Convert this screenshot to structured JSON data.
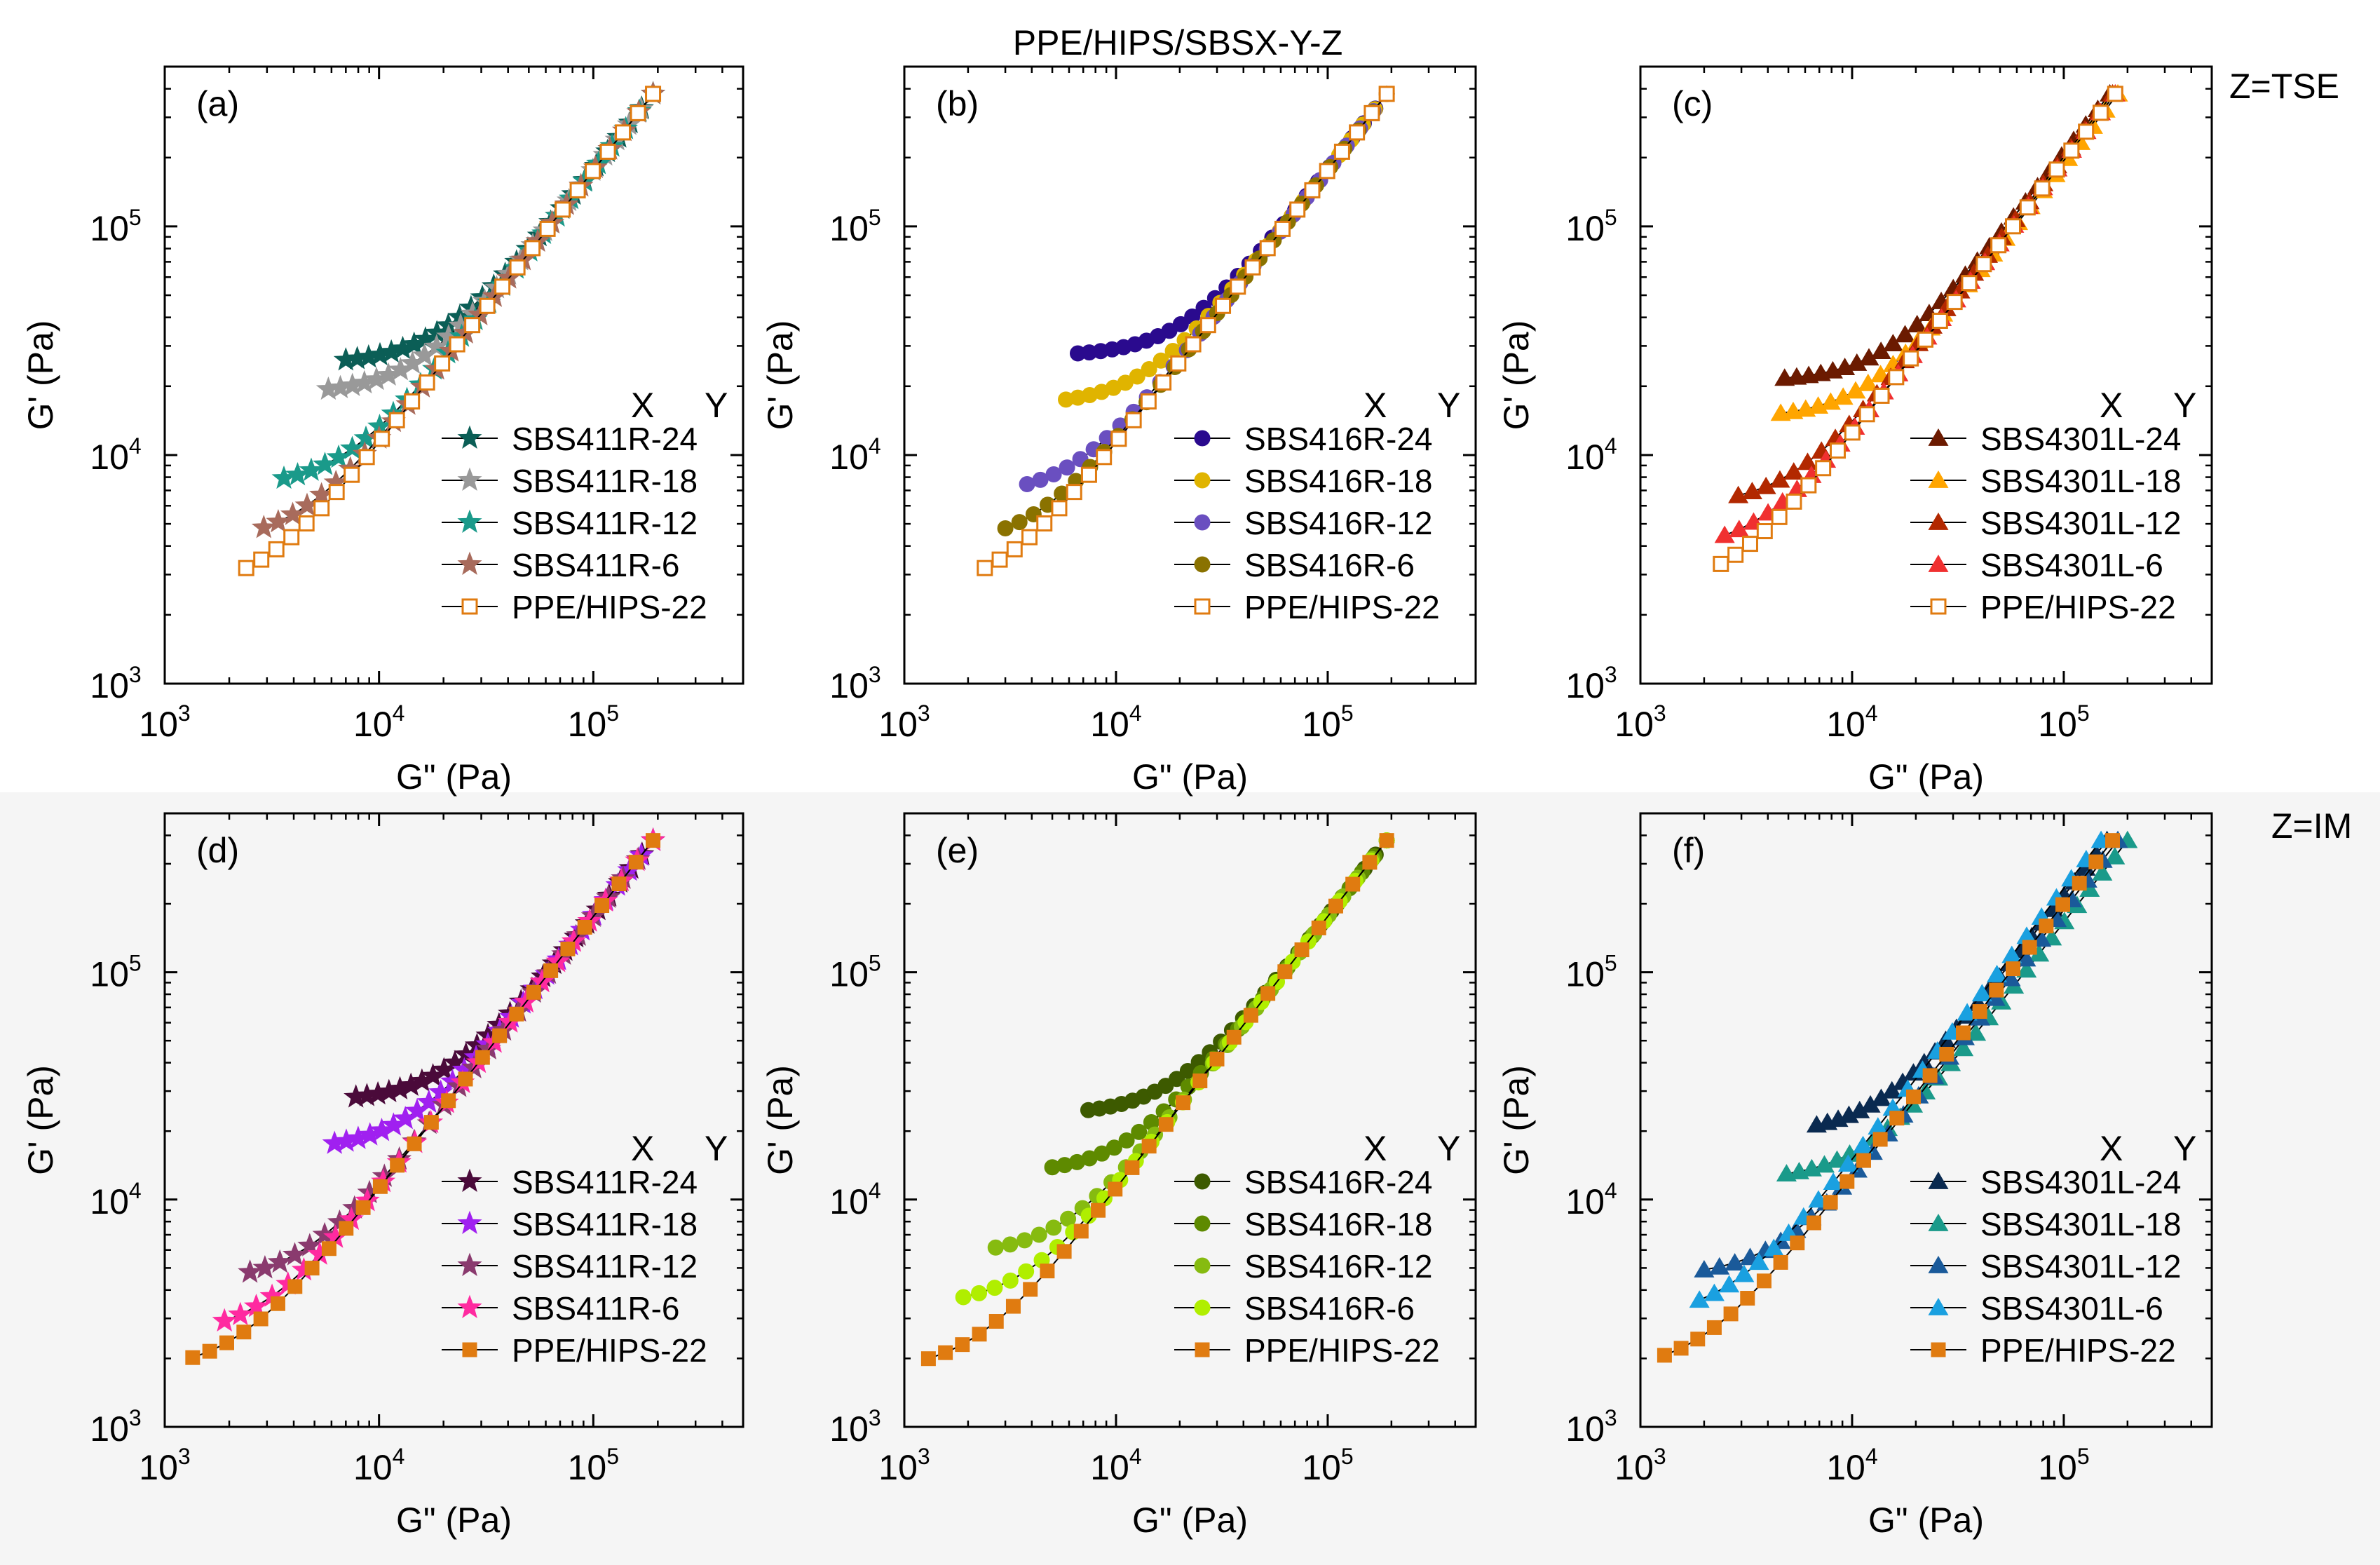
{
  "figure": {
    "title": "PPE/HIPS/SBSX-Y-Z",
    "row_labels": [
      "Z=TSE",
      "Z=IM"
    ],
    "legend_header_x": "X",
    "legend_header_y": "Y",
    "bottom_row_background": "#f5f5f5"
  },
  "chart_data": [
    {
      "type": "scatter",
      "panel": "(a)",
      "xlabel": "G\" (Pa)",
      "ylabel": "G' (Pa)",
      "xscale": "log",
      "yscale": "log",
      "xlim": [
        1000,
        500000
      ],
      "ylim": [
        1000,
        500000
      ],
      "x_ticks": [
        1000,
        10000,
        100000
      ],
      "y_ticks": [
        1000,
        10000,
        100000
      ],
      "legend_position": "bottom-right",
      "series": [
        {
          "name": "SBS411R-24",
          "color": "#0b5e56",
          "marker": "star",
          "x_start": 7000,
          "x_end": 190000,
          "plateau": 25000
        },
        {
          "name": "SBS411R-18",
          "color": "#999999",
          "marker": "star",
          "x_start": 5800,
          "x_end": 190000,
          "plateau": 18500
        },
        {
          "name": "SBS411R-12",
          "color": "#1a9a8a",
          "marker": "star",
          "x_start": 3600,
          "x_end": 190000,
          "plateau": 7200
        },
        {
          "name": "SBS411R-6",
          "color": "#a86b5c",
          "marker": "star",
          "x_start": 2900,
          "x_end": 190000,
          "plateau": 4100
        },
        {
          "name": "PPE/HIPS-22",
          "color": "#e07b10",
          "marker": "open-square",
          "x_start": 2400,
          "x_end": 190000,
          "plateau": 2500
        }
      ]
    },
    {
      "type": "scatter",
      "panel": "(b)",
      "xlabel": "G\" (Pa)",
      "ylabel": "G' (Pa)",
      "xscale": "log",
      "yscale": "log",
      "xlim": [
        1000,
        500000
      ],
      "ylim": [
        1000,
        500000
      ],
      "x_ticks": [
        1000,
        10000,
        100000
      ],
      "y_ticks": [
        1000,
        10000,
        100000
      ],
      "legend_position": "bottom-right",
      "series": [
        {
          "name": "SBS416R-24",
          "color": "#2a0a8e",
          "marker": "circle",
          "x_start": 6600,
          "x_end": 190000,
          "plateau": 27000
        },
        {
          "name": "SBS416R-18",
          "color": "#e0b400",
          "marker": "circle",
          "x_start": 5800,
          "x_end": 190000,
          "plateau": 16500
        },
        {
          "name": "SBS416R-12",
          "color": "#6a4fc0",
          "marker": "circle",
          "x_start": 3800,
          "x_end": 190000,
          "plateau": 6600
        },
        {
          "name": "SBS416R-6",
          "color": "#8a7200",
          "marker": "circle",
          "x_start": 3000,
          "x_end": 190000,
          "plateau": 4000
        },
        {
          "name": "PPE/HIPS-22",
          "color": "#e07b10",
          "marker": "open-square",
          "x_start": 2400,
          "x_end": 190000,
          "plateau": 2500
        }
      ]
    },
    {
      "type": "scatter",
      "panel": "(c)",
      "xlabel": "G\" (Pa)",
      "ylabel": "G' (Pa)",
      "xscale": "log",
      "yscale": "log",
      "xlim": [
        1000,
        500000
      ],
      "ylim": [
        1000,
        500000
      ],
      "x_ticks": [
        1000,
        10000,
        100000
      ],
      "y_ticks": [
        1000,
        10000,
        100000
      ],
      "legend_position": "bottom-right",
      "series": [
        {
          "name": "SBS4301L-24",
          "color": "#6b1a00",
          "marker": "triangle",
          "x_start": 4800,
          "x_end": 165000,
          "plateau": 21000
        },
        {
          "name": "SBS4301L-18",
          "color": "#ffa500",
          "marker": "triangle",
          "x_start": 4600,
          "x_end": 180000,
          "plateau": 14500
        },
        {
          "name": "SBS4301L-12",
          "color": "#b22800",
          "marker": "triangle",
          "x_start": 2900,
          "x_end": 170000,
          "plateau": 6000
        },
        {
          "name": "SBS4301L-6",
          "color": "#f03030",
          "marker": "triangle",
          "x_start": 2500,
          "x_end": 175000,
          "plateau": 3800
        },
        {
          "name": "PPE/HIPS-22",
          "color": "#e07b10",
          "marker": "open-square",
          "x_start": 2400,
          "x_end": 175000,
          "plateau": 2500
        }
      ]
    },
    {
      "type": "scatter",
      "panel": "(d)",
      "xlabel": "G\" (Pa)",
      "ylabel": "G' (Pa)",
      "xscale": "log",
      "yscale": "log",
      "xlim": [
        1000,
        500000
      ],
      "ylim": [
        1000,
        500000
      ],
      "x_ticks": [
        1000,
        10000,
        100000
      ],
      "y_ticks": [
        1000,
        10000,
        100000
      ],
      "legend_position": "bottom-right",
      "series": [
        {
          "name": "SBS411R-24",
          "color": "#4a0a3a",
          "marker": "star",
          "x_start": 7800,
          "x_end": 190000,
          "plateau": 27000
        },
        {
          "name": "SBS411R-18",
          "color": "#a020f0",
          "marker": "star",
          "x_start": 6200,
          "x_end": 190000,
          "plateau": 16500
        },
        {
          "name": "SBS411R-12",
          "color": "#8a3a6e",
          "marker": "star",
          "x_start": 2500,
          "x_end": 190000,
          "plateau": 4300
        },
        {
          "name": "SBS411R-6",
          "color": "#ff2aa0",
          "marker": "star",
          "x_start": 1900,
          "x_end": 190000,
          "plateau": 2500
        },
        {
          "name": "PPE/HIPS-22",
          "color": "#e07b10",
          "marker": "filled-square",
          "x_start": 1350,
          "x_end": 190000,
          "plateau": 1750
        }
      ]
    },
    {
      "type": "scatter",
      "panel": "(e)",
      "xlabel": "G\" (Pa)",
      "ylabel": "G' (Pa)",
      "xscale": "log",
      "yscale": "log",
      "xlim": [
        1000,
        500000
      ],
      "ylim": [
        1000,
        500000
      ],
      "x_ticks": [
        1000,
        10000,
        100000
      ],
      "y_ticks": [
        1000,
        10000,
        100000
      ],
      "legend_position": "bottom-right",
      "series": [
        {
          "name": "SBS416R-24",
          "color": "#3d5a00",
          "marker": "circle",
          "x_start": 7400,
          "x_end": 190000,
          "plateau": 23500
        },
        {
          "name": "SBS416R-18",
          "color": "#5e8a00",
          "marker": "circle",
          "x_start": 5000,
          "x_end": 190000,
          "plateau": 13000
        },
        {
          "name": "SBS416R-12",
          "color": "#86bb10",
          "marker": "circle",
          "x_start": 2700,
          "x_end": 190000,
          "plateau": 5700
        },
        {
          "name": "SBS416R-6",
          "color": "#b0ee00",
          "marker": "circle",
          "x_start": 1900,
          "x_end": 190000,
          "plateau": 3400
        },
        {
          "name": "PPE/HIPS-22",
          "color": "#e07b10",
          "marker": "filled-square",
          "x_start": 1300,
          "x_end": 190000,
          "plateau": 1750
        }
      ]
    },
    {
      "type": "scatter",
      "panel": "(f)",
      "xlabel": "G\" (Pa)",
      "ylabel": "G' (Pa)",
      "xscale": "log",
      "yscale": "log",
      "xlim": [
        1000,
        500000
      ],
      "ylim": [
        1000,
        500000
      ],
      "x_ticks": [
        1000,
        10000,
        100000
      ],
      "y_ticks": [
        1000,
        10000,
        100000
      ],
      "legend_position": "bottom-right",
      "series": [
        {
          "name": "SBS4301L-24",
          "color": "#0a2a50",
          "marker": "triangle",
          "x_start": 6800,
          "x_end": 160000,
          "plateau": 19500
        },
        {
          "name": "SBS4301L-18",
          "color": "#1a9a8a",
          "marker": "triangle",
          "x_start": 4900,
          "x_end": 200000,
          "plateau": 12200
        },
        {
          "name": "SBS4301L-12",
          "color": "#1a5a9a",
          "marker": "triangle",
          "x_start": 2000,
          "x_end": 180000,
          "plateau": 4600
        },
        {
          "name": "SBS4301L-6",
          "color": "#1aa0e0",
          "marker": "triangle",
          "x_start": 1900,
          "x_end": 150000,
          "plateau": 3000
        },
        {
          "name": "PPE/HIPS-22",
          "color": "#e07b10",
          "marker": "filled-square",
          "x_start": 1300,
          "x_end": 170000,
          "plateau": 1750
        }
      ]
    }
  ]
}
